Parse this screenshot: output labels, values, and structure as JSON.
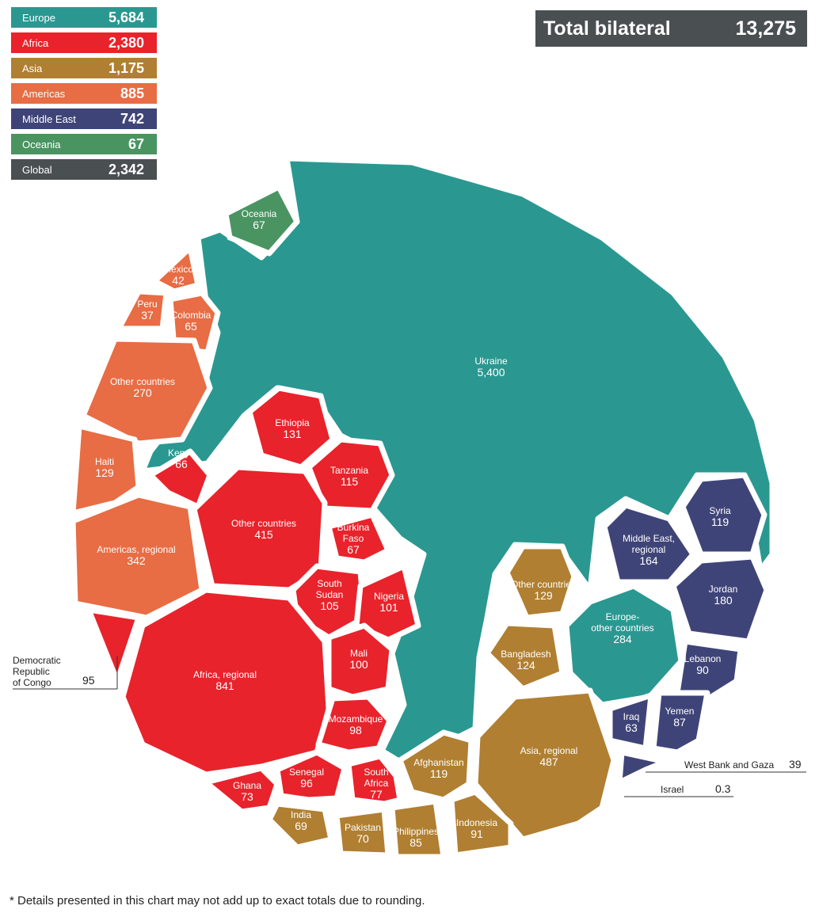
{
  "colors": {
    "Europe": "#2a9891",
    "Africa": "#e8232b",
    "Asia": "#b07f31",
    "Americas": "#e86c44",
    "Middle East": "#3f4478",
    "Oceania": "#4a9462",
    "Global": "#4a4f51"
  },
  "legend": [
    {
      "name": "Europe",
      "value": "5,684",
      "color": "#2a9891"
    },
    {
      "name": "Africa",
      "value": "2,380",
      "color": "#e8232b"
    },
    {
      "name": "Asia",
      "value": "1,175",
      "color": "#b07f31"
    },
    {
      "name": "Americas",
      "value": "885",
      "color": "#e86c44"
    },
    {
      "name": "Middle East",
      "value": "742",
      "color": "#3f4478"
    },
    {
      "name": "Oceania",
      "value": "67",
      "color": "#4a9462"
    },
    {
      "name": "Global",
      "value": "2,342",
      "color": "#4a4f51"
    }
  ],
  "total": {
    "label": "Total bilateral",
    "value": "13,275"
  },
  "footnote": "* Details presented in this chart may not add up to exact totals due to rounding.",
  "chart_data": {
    "type": "voronoi treemap",
    "regions": [
      {
        "name": "Europe",
        "total": 5684
      },
      {
        "name": "Africa",
        "total": 2380
      },
      {
        "name": "Asia",
        "total": 1175
      },
      {
        "name": "Americas",
        "total": 885
      },
      {
        "name": "Middle East",
        "total": 742
      },
      {
        "name": "Oceania",
        "total": 67
      },
      {
        "name": "Global",
        "total": 2342
      }
    ],
    "total_bilateral": 13275,
    "cells": [
      {
        "label": "Ukraine",
        "value": 5400,
        "display": "5,400",
        "region": "Europe"
      },
      {
        "label": "Europe- other countries",
        "value": 284,
        "display": "284",
        "region": "Europe"
      },
      {
        "label": "Oceania",
        "value": 67,
        "display": "67",
        "region": "Oceania"
      },
      {
        "label": "Mexico",
        "value": 42,
        "display": "42",
        "region": "Americas"
      },
      {
        "label": "Peru",
        "value": 37,
        "display": "37",
        "region": "Americas"
      },
      {
        "label": "Colombia",
        "value": 65,
        "display": "65",
        "region": "Americas"
      },
      {
        "label": "Other countries",
        "value": 270,
        "display": "270",
        "region": "Americas"
      },
      {
        "label": "Haiti",
        "value": 129,
        "display": "129",
        "region": "Americas"
      },
      {
        "label": "Americas, regional",
        "value": 342,
        "display": "342",
        "region": "Americas"
      },
      {
        "label": "Ethiopia",
        "value": 131,
        "display": "131",
        "region": "Africa"
      },
      {
        "label": "Kenya",
        "value": 66,
        "display": "66",
        "region": "Africa"
      },
      {
        "label": "Tanzania",
        "value": 115,
        "display": "115",
        "region": "Africa"
      },
      {
        "label": "Other countries",
        "value": 415,
        "display": "415",
        "region": "Africa"
      },
      {
        "label": "Burkina Faso",
        "value": 67,
        "display": "67",
        "region": "Africa"
      },
      {
        "label": "South Sudan",
        "value": 105,
        "display": "105",
        "region": "Africa"
      },
      {
        "label": "Nigeria",
        "value": 101,
        "display": "101",
        "region": "Africa"
      },
      {
        "label": "Mali",
        "value": 100,
        "display": "100",
        "region": "Africa"
      },
      {
        "label": "Africa, regional",
        "value": 841,
        "display": "841",
        "region": "Africa"
      },
      {
        "label": "Democratic Republic of Congo",
        "value": 95,
        "display": "95",
        "region": "Africa"
      },
      {
        "label": "Mozambique",
        "value": 98,
        "display": "98",
        "region": "Africa"
      },
      {
        "label": "Senegal",
        "value": 96,
        "display": "96",
        "region": "Africa"
      },
      {
        "label": "South Africa",
        "value": 77,
        "display": "77",
        "region": "Africa"
      },
      {
        "label": "Ghana",
        "value": 73,
        "display": "73",
        "region": "Africa"
      },
      {
        "label": "Other countries",
        "value": 129,
        "display": "129",
        "region": "Asia"
      },
      {
        "label": "Bangladesh",
        "value": 124,
        "display": "124",
        "region": "Asia"
      },
      {
        "label": "Asia, regional",
        "value": 487,
        "display": "487",
        "region": "Asia"
      },
      {
        "label": "Afghanistan",
        "value": 119,
        "display": "119",
        "region": "Asia"
      },
      {
        "label": "India",
        "value": 69,
        "display": "69",
        "region": "Asia"
      },
      {
        "label": "Pakistan",
        "value": 70,
        "display": "70",
        "region": "Asia"
      },
      {
        "label": "Philippines",
        "value": 85,
        "display": "85",
        "region": "Asia"
      },
      {
        "label": "Indonesia",
        "value": 91,
        "display": "91",
        "region": "Asia"
      },
      {
        "label": "Syria",
        "value": 119,
        "display": "119",
        "region": "Middle East"
      },
      {
        "label": "Middle East, regional",
        "value": 164,
        "display": "164",
        "region": "Middle East"
      },
      {
        "label": "Jordan",
        "value": 180,
        "display": "180",
        "region": "Middle East"
      },
      {
        "label": "Lebanon",
        "value": 90,
        "display": "90",
        "region": "Middle East"
      },
      {
        "label": "Iraq",
        "value": 63,
        "display": "63",
        "region": "Middle East"
      },
      {
        "label": "Yemen",
        "value": 87,
        "display": "87",
        "region": "Middle East"
      },
      {
        "label": "West Bank and Gaza",
        "value": 39,
        "display": "39",
        "region": "Middle East"
      },
      {
        "label": "Israel",
        "value": 0.3,
        "display": "0.3",
        "region": "Middle East"
      }
    ]
  }
}
